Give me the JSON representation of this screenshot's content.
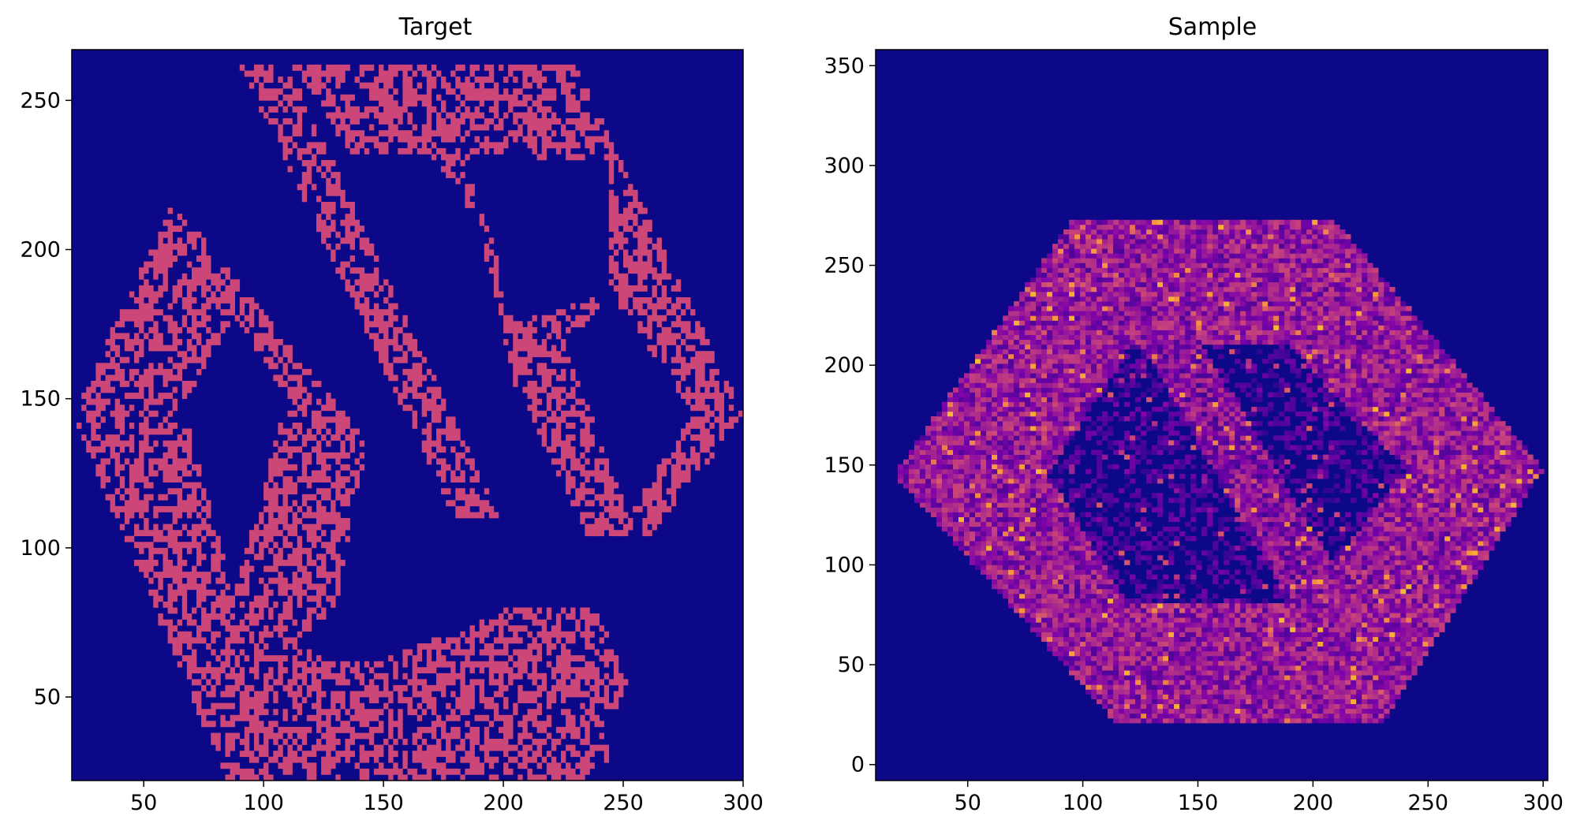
{
  "chart_data": [
    {
      "type": "heatmap",
      "title": "Target",
      "xlabel": "",
      "ylabel": "",
      "xlim": [
        20,
        300
      ],
      "ylim": [
        22,
        267
      ],
      "xticks": [
        50,
        100,
        150,
        200,
        250,
        300
      ],
      "yticks": [
        50,
        100,
        150,
        200,
        250
      ],
      "colormap": "plasma",
      "background_color": "#0d0887",
      "mark_color": "#cc4778",
      "grid": false,
      "cell_size": 2,
      "description_regions": "binary pixel histogram forming hexagonal outline with diagonal crossing bands",
      "filled_polygons": [
        [
          [
            20,
            145
          ],
          [
            85,
            22
          ],
          [
            232,
            22
          ],
          [
            252,
            55
          ],
          [
            238,
            80
          ],
          [
            208,
            80
          ],
          [
            150,
            63
          ],
          [
            130,
            63
          ],
          [
            90,
            85
          ],
          [
            66,
            148
          ],
          [
            88,
            178
          ],
          [
            90,
            190
          ],
          [
            62,
            215
          ]
        ],
        [
          [
            90,
            262
          ],
          [
            110,
            262
          ],
          [
            245,
            30
          ],
          [
            232,
            22
          ]
        ],
        [
          [
            110,
            262
          ],
          [
            198,
            262
          ],
          [
            185,
            232
          ],
          [
            137,
            232
          ]
        ],
        [
          [
            198,
            262
          ],
          [
            230,
            262
          ],
          [
            300,
            145
          ],
          [
            263,
            105
          ],
          [
            240,
            120
          ],
          [
            205,
            155
          ],
          [
            183,
            232
          ]
        ],
        [
          [
            170,
            232
          ],
          [
            185,
            232
          ],
          [
            225,
            168
          ],
          [
            198,
            200
          ]
        ],
        [
          [
            62,
            215
          ],
          [
            90,
            190
          ],
          [
            143,
            135
          ],
          [
            130,
            80
          ],
          [
            100,
            60
          ],
          [
            66,
            148
          ]
        ],
        [
          [
            205,
            155
          ],
          [
            300,
            145
          ],
          [
            263,
            105
          ],
          [
            235,
            105
          ],
          [
            205,
            155
          ]
        ]
      ],
      "holes": [
        [
          [
            66,
            148
          ],
          [
            88,
            178
          ],
          [
            110,
            150
          ],
          [
            88,
            84
          ]
        ],
        [
          [
            150,
            80
          ],
          [
            232,
            80
          ],
          [
            202,
            110
          ],
          [
            162,
            110
          ]
        ],
        [
          [
            185,
            232
          ],
          [
            245,
            230
          ],
          [
            245,
            185
          ],
          [
            205,
            175
          ]
        ],
        [
          [
            225,
            168
          ],
          [
            245,
            185
          ],
          [
            280,
            145
          ],
          [
            252,
            112
          ]
        ]
      ]
    },
    {
      "type": "heatmap",
      "title": "Sample",
      "xlabel": "",
      "ylabel": "",
      "xlim": [
        10,
        302
      ],
      "ylim": [
        -8,
        358
      ],
      "xticks": [
        50,
        100,
        150,
        200,
        250,
        300
      ],
      "yticks": [
        0,
        50,
        100,
        150,
        200,
        250,
        300,
        350
      ],
      "colormap": "plasma",
      "background_color": "#0d0887",
      "grid": false,
      "cell_size": 1.2,
      "ring_outer": [
        [
          18,
          145
        ],
        [
          95,
          272
        ],
        [
          210,
          272
        ],
        [
          300,
          148
        ],
        [
          230,
          20
        ],
        [
          115,
          20
        ]
      ],
      "ring_inner": [
        [
          85,
          145
        ],
        [
          120,
          210
        ],
        [
          190,
          210
        ],
        [
          240,
          148
        ],
        [
          195,
          80
        ],
        [
          120,
          80
        ]
      ],
      "diagonal_band": [
        [
          95,
          272
        ],
        [
          120,
          272
        ],
        [
          245,
          30
        ],
        [
          215,
          30
        ]
      ]
    }
  ]
}
